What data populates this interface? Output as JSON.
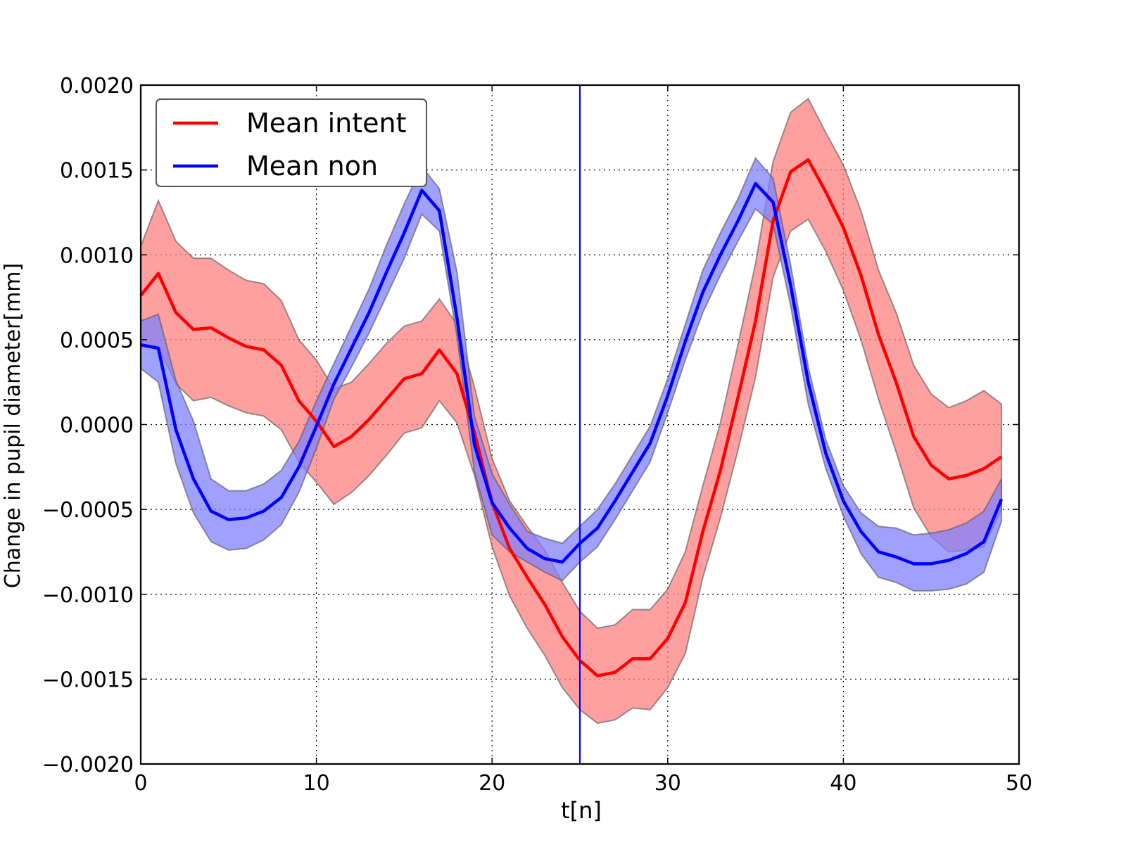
{
  "chart_data": {
    "type": "line",
    "title": "",
    "xlabel": "t[n]",
    "ylabel": "Change in pupil diameter[mm]",
    "xlim": [
      0,
      50
    ],
    "ylim": [
      -0.002,
      0.002
    ],
    "x_ticks": [
      0,
      10,
      20,
      30,
      40,
      50
    ],
    "x_tick_labels": [
      "0",
      "10",
      "20",
      "30",
      "40",
      "50"
    ],
    "y_ticks": [
      -0.002,
      -0.0015,
      -0.001,
      -0.0005,
      0.0,
      0.0005,
      0.001,
      0.0015,
      0.002
    ],
    "y_tick_labels": [
      "−0.0020",
      "−0.0015",
      "−0.0010",
      "−0.0005",
      "0.0000",
      "0.0005",
      "0.0010",
      "0.0015",
      "0.0020"
    ],
    "grid": true,
    "legend_position": "top-left",
    "vertical_line": {
      "x": 25,
      "color": "#0000ff"
    },
    "x": [
      0,
      1,
      2,
      3,
      4,
      5,
      6,
      7,
      8,
      9,
      10,
      11,
      12,
      13,
      14,
      15,
      16,
      17,
      18,
      19,
      20,
      21,
      22,
      23,
      24,
      25,
      26,
      27,
      28,
      29,
      30,
      31,
      32,
      33,
      34,
      35,
      36,
      37,
      38,
      39,
      40,
      41,
      42,
      43,
      44,
      45,
      46,
      47,
      48,
      49
    ],
    "series": [
      {
        "name": "Mean intent",
        "color": "#ff0000",
        "band_color": "#ff8080",
        "values": [
          0.00076,
          0.00089,
          0.00066,
          0.00056,
          0.00057,
          0.00051,
          0.00046,
          0.00044,
          0.00035,
          0.00014,
          2e-05,
          -0.00013,
          -7e-05,
          3e-05,
          0.00015,
          0.00027,
          0.0003,
          0.00044,
          0.0003,
          -5e-05,
          -0.00046,
          -0.00073,
          -0.0009,
          -0.00106,
          -0.00125,
          -0.00139,
          -0.00148,
          -0.00146,
          -0.00138,
          -0.00138,
          -0.00126,
          -0.00105,
          -0.00063,
          -0.00027,
          0.00016,
          0.00061,
          0.0012,
          0.00149,
          0.00156,
          0.00137,
          0.00116,
          0.00088,
          0.00053,
          0.00025,
          -7e-05,
          -0.00024,
          -0.00032,
          -0.0003,
          -0.00026,
          -0.00019
        ],
        "upper": [
          0.00105,
          0.00132,
          0.00108,
          0.00098,
          0.00098,
          0.00091,
          0.00085,
          0.00083,
          0.00073,
          0.0005,
          0.00038,
          0.00021,
          0.00025,
          0.00036,
          0.00048,
          0.00058,
          0.00061,
          0.00074,
          0.00059,
          0.00022,
          -0.0002,
          -0.00045,
          -0.0006,
          -0.00074,
          -0.00093,
          -0.0011,
          -0.0012,
          -0.00118,
          -0.00109,
          -0.00109,
          -0.00097,
          -0.00075,
          -0.00036,
          1e-05,
          0.00047,
          0.00095,
          0.00155,
          0.00184,
          0.00192,
          0.00172,
          0.00153,
          0.00126,
          0.00091,
          0.00066,
          0.00035,
          0.00018,
          0.0001,
          0.00014,
          0.0002,
          0.00012
        ],
        "lower": [
          0.00047,
          0.00046,
          0.00024,
          0.00014,
          0.00016,
          0.00011,
          7e-05,
          5e-05,
          -3e-05,
          -0.00022,
          -0.00034,
          -0.00047,
          -0.0004,
          -0.0003,
          -0.00018,
          -5e-05,
          -2e-05,
          0.00014,
          1e-05,
          -0.0003,
          -0.00072,
          -0.00101,
          -0.0012,
          -0.00136,
          -0.00155,
          -0.00168,
          -0.00176,
          -0.00174,
          -0.00167,
          -0.00168,
          -0.00155,
          -0.00135,
          -0.0009,
          -0.00055,
          -0.00015,
          0.00028,
          0.00087,
          0.00114,
          0.00121,
          0.00102,
          0.00079,
          0.0005,
          0.00015,
          -0.00016,
          -0.00049,
          -0.00066,
          -0.00075,
          -0.00074,
          -0.00072,
          -0.0005
        ]
      },
      {
        "name": "Mean non",
        "color": "#0000ff",
        "band_color": "#8080ff",
        "values": [
          0.00047,
          0.00045,
          -3e-05,
          -0.00032,
          -0.00051,
          -0.00056,
          -0.00055,
          -0.00051,
          -0.00043,
          -0.00025,
          -1e-05,
          0.00024,
          0.00045,
          0.00066,
          0.0009,
          0.00113,
          0.00138,
          0.00126,
          0.00063,
          -0.00012,
          -0.00046,
          -0.00061,
          -0.00073,
          -0.00079,
          -0.00081,
          -0.0007,
          -0.00061,
          -0.00045,
          -0.00028,
          -0.00011,
          0.00017,
          0.00049,
          0.00078,
          0.001,
          0.0012,
          0.00142,
          0.00131,
          0.00082,
          0.00025,
          -0.00017,
          -0.00045,
          -0.00063,
          -0.00075,
          -0.00078,
          -0.00082,
          -0.00082,
          -0.0008,
          -0.00076,
          -0.00069,
          -0.00044
        ],
        "upper": [
          0.00061,
          0.00065,
          0.00026,
          2e-05,
          -0.00032,
          -0.00039,
          -0.00039,
          -0.00035,
          -0.00027,
          -0.0001,
          0.00014,
          0.00036,
          0.00058,
          0.0008,
          0.00106,
          0.0013,
          0.00152,
          0.00139,
          0.0009,
          5e-05,
          -0.00029,
          -0.00047,
          -0.00063,
          -0.00067,
          -0.0007,
          -0.0006,
          -0.0005,
          -0.00035,
          -0.00018,
          -1e-05,
          0.00027,
          0.00059,
          0.00091,
          0.00113,
          0.00133,
          0.00157,
          0.00145,
          0.00094,
          0.00034,
          -9e-05,
          -0.00036,
          -0.00052,
          -0.0006,
          -0.00061,
          -0.00065,
          -0.00064,
          -0.00062,
          -0.00058,
          -0.00051,
          -0.00032
        ],
        "lower": [
          0.00033,
          0.00025,
          -0.00023,
          -0.00052,
          -0.00069,
          -0.00074,
          -0.00073,
          -0.00068,
          -0.00059,
          -0.0004,
          -0.00014,
          0.00015,
          0.00034,
          0.00054,
          0.00076,
          0.00098,
          0.00124,
          0.00114,
          0.00052,
          -0.00028,
          -0.00065,
          -0.00075,
          -0.00081,
          -0.00087,
          -0.00092,
          -0.00081,
          -0.00072,
          -0.00056,
          -0.00039,
          -0.00022,
          7e-05,
          0.00038,
          0.00066,
          0.00088,
          0.00108,
          0.00127,
          0.00118,
          0.0007,
          0.00012,
          -0.00026,
          -0.00054,
          -0.00076,
          -0.0009,
          -0.00093,
          -0.00098,
          -0.00098,
          -0.00097,
          -0.00094,
          -0.00087,
          -0.00057
        ]
      }
    ]
  }
}
